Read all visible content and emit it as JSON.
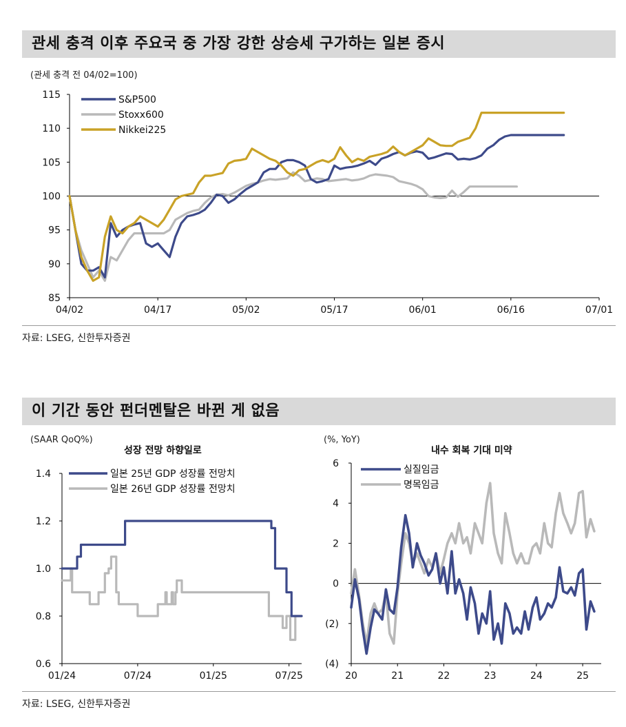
{
  "section1": {
    "title": "관세 충격 이후 주요국 중 가장 강한 상승세 구가하는 일본 증시",
    "source": "자료: LSEG, 신한투자증권"
  },
  "section2": {
    "title": "이 기간 동안 펀더멘탈은 바뀐 게 없음",
    "source": "자료: LSEG, 신한투자증권"
  },
  "colors": {
    "navy": "#3d4a8a",
    "gray": "#b9b9b9",
    "gold": "#c9a227"
  },
  "chart_data": [
    {
      "id": "stocks",
      "type": "line",
      "title": "",
      "ylabel": "(관세 충격 전 04/02=100)",
      "ylim": [
        85,
        115
      ],
      "yticks": [
        "85",
        "90",
        "95",
        "100",
        "105",
        "110",
        "115"
      ],
      "xlim": [
        0,
        90
      ],
      "xticks": [
        {
          "label": "04/02",
          "x": 0
        },
        {
          "label": "04/17",
          "x": 15
        },
        {
          "label": "05/02",
          "x": 30
        },
        {
          "label": "05/17",
          "x": 45
        },
        {
          "label": "06/01",
          "x": 60
        },
        {
          "label": "06/16",
          "x": 75
        },
        {
          "label": "07/01",
          "x": 90
        }
      ],
      "baseline": 100,
      "legend": "top-left",
      "series": [
        {
          "name": "S&P500",
          "color": "#3d4a8a",
          "x": [
            0,
            1,
            2,
            3,
            4,
            5,
            6,
            7,
            8,
            9,
            10,
            11,
            12,
            13,
            14,
            15,
            16,
            17,
            18,
            19,
            20,
            21,
            22,
            23,
            24,
            25,
            26,
            27,
            28,
            29,
            30,
            31,
            32,
            33,
            34,
            35,
            36,
            37,
            38,
            39,
            40,
            41,
            42,
            43,
            44,
            45,
            46,
            47,
            48,
            49,
            50,
            51,
            52,
            53,
            54,
            55,
            56,
            57,
            58,
            59,
            60,
            61,
            62,
            63,
            64,
            65,
            66,
            67,
            68,
            69,
            70,
            71,
            72,
            73,
            74,
            75,
            76,
            77,
            78,
            79,
            80,
            81,
            82,
            83,
            84
          ],
          "y": [
            100,
            95,
            90,
            89,
            89,
            89.5,
            88,
            96,
            94,
            95,
            95.5,
            95.8,
            96,
            93,
            92.5,
            93,
            92,
            91,
            94,
            96,
            97,
            97.2,
            97.5,
            98,
            99,
            100.2,
            100,
            99,
            99.5,
            100.3,
            101,
            101.5,
            102,
            103.5,
            104,
            104,
            105,
            105.3,
            105.3,
            105,
            104.5,
            102.5,
            102,
            102.2,
            102.5,
            104.5,
            104,
            104.2,
            104.3,
            104.5,
            104.8,
            105.2,
            104.6,
            105.5,
            105.8,
            106.2,
            106.5,
            106,
            106.4,
            106.6,
            106.4,
            105.5,
            105.7,
            106,
            106.3,
            106.2,
            105.4,
            105.5,
            105.4,
            105.6,
            106,
            107,
            107.5,
            108.3,
            108.8,
            109,
            109,
            109,
            109,
            109,
            109,
            109,
            109,
            109,
            109
          ]
        },
        {
          "name": "Stoxx600",
          "color": "#b9b9b9",
          "x": [
            0,
            1,
            2,
            3,
            4,
            5,
            6,
            7,
            8,
            9,
            10,
            11,
            12,
            13,
            14,
            15,
            16,
            17,
            18,
            19,
            20,
            21,
            22,
            23,
            24,
            25,
            26,
            27,
            28,
            29,
            30,
            31,
            32,
            33,
            34,
            35,
            36,
            37,
            38,
            39,
            40,
            41,
            42,
            43,
            44,
            45,
            46,
            47,
            48,
            49,
            50,
            51,
            52,
            53,
            54,
            55,
            56,
            57,
            58,
            59,
            60,
            61,
            62,
            63,
            64,
            65,
            66,
            67,
            68,
            69,
            70,
            71,
            72,
            73,
            74,
            75,
            76
          ],
          "y": [
            100,
            95,
            92,
            90,
            88,
            89,
            87.5,
            91,
            90.5,
            92,
            93.5,
            94.5,
            94.5,
            94.5,
            94.5,
            94.5,
            94.5,
            95,
            96.5,
            97,
            97.5,
            97.8,
            98,
            99,
            99.8,
            100.2,
            100.3,
            100.1,
            100.5,
            101,
            101.5,
            101.8,
            102,
            102.3,
            102.5,
            102.4,
            102.5,
            102.6,
            103.5,
            103,
            102.2,
            102.4,
            102.6,
            102.5,
            102.2,
            102.3,
            102.4,
            102.5,
            102.3,
            102.4,
            102.6,
            103,
            103.2,
            103.1,
            103,
            102.8,
            102.2,
            102,
            101.8,
            101.5,
            101,
            100,
            99.8,
            99.7,
            99.8,
            100.8,
            99.9,
            100.6,
            101.4,
            101.4,
            101.4,
            101.4,
            101.4,
            101.4,
            101.4,
            101.4,
            101.4
          ]
        },
        {
          "name": "Nikkei225",
          "color": "#c9a227",
          "x": [
            0,
            1,
            2,
            3,
            4,
            5,
            6,
            7,
            8,
            9,
            10,
            11,
            12,
            13,
            14,
            15,
            16,
            17,
            18,
            19,
            20,
            21,
            22,
            23,
            24,
            25,
            26,
            27,
            28,
            29,
            30,
            31,
            32,
            33,
            34,
            35,
            36,
            37,
            38,
            39,
            40,
            41,
            42,
            43,
            44,
            45,
            46,
            47,
            48,
            49,
            50,
            51,
            52,
            53,
            54,
            55,
            56,
            57,
            58,
            59,
            60,
            61,
            62,
            63,
            64,
            65,
            66,
            67,
            68,
            69,
            70,
            71,
            72,
            73,
            74,
            75,
            76,
            77,
            78,
            79,
            80,
            81,
            82,
            83,
            84
          ],
          "y": [
            100,
            95,
            91,
            89,
            87.5,
            88,
            94,
            97,
            95,
            94.5,
            95.5,
            96,
            97,
            96.5,
            96,
            95.5,
            96.5,
            98,
            99.5,
            100,
            100.2,
            100.4,
            102,
            103,
            103,
            103.2,
            103.4,
            104.8,
            105.2,
            105.3,
            105.5,
            107,
            106.5,
            106,
            105.5,
            105.2,
            104.5,
            103.5,
            103,
            103.8,
            104,
            104.5,
            105,
            105.3,
            105,
            105.5,
            107.2,
            106,
            105,
            105.5,
            105.2,
            105.8,
            106,
            106.2,
            106.5,
            107.3,
            106.5,
            106,
            106.5,
            107,
            107.5,
            108.5,
            108,
            107.5,
            107.4,
            107.4,
            108,
            108.3,
            108.6,
            110,
            112.3,
            112.3,
            112.3,
            112.3,
            112.3,
            112.3,
            112.3,
            112.3,
            112.3,
            112.3,
            112.3,
            112.3,
            112.3,
            112.3,
            112.3
          ]
        }
      ]
    },
    {
      "id": "gdp",
      "type": "line",
      "title": "성장 전망 하향일로",
      "ylabel": "(SAAR QoQ%)",
      "ylim": [
        0.6,
        1.4
      ],
      "yticks": [
        "0.6",
        "0.8",
        "1.0",
        "1.2",
        "1.4"
      ],
      "xlim": [
        0,
        19
      ],
      "xticks": [
        {
          "label": "01/24",
          "x": 0
        },
        {
          "label": "07/24",
          "x": 6
        },
        {
          "label": "01/25",
          "x": 12
        },
        {
          "label": "07/25",
          "x": 18
        }
      ],
      "legend": "top-left",
      "series": [
        {
          "name": "일본 25년 GDP 성장률 전망치",
          "color": "#3d4a8a",
          "x": [
            0,
            1.2,
            1.2,
            1.5,
            1.5,
            5,
            5,
            16.6,
            16.6,
            16.9,
            16.9,
            17.8,
            17.8,
            18.2,
            18.2,
            19
          ],
          "y": [
            1.0,
            1.0,
            1.05,
            1.05,
            1.1,
            1.1,
            1.2,
            1.2,
            1.17,
            1.17,
            1.0,
            1.0,
            0.9,
            0.9,
            0.8,
            0.8
          ]
        },
        {
          "name": "일본 26년 GDP 성장률 전망치",
          "color": "#b9b9b9",
          "x": [
            0,
            0.7,
            0.7,
            0.8,
            0.8,
            2.2,
            2.2,
            2.9,
            2.9,
            3.4,
            3.4,
            3.7,
            3.7,
            3.9,
            3.9,
            4.3,
            4.3,
            4.5,
            4.5,
            6,
            6,
            7.6,
            7.6,
            8.2,
            8.2,
            8.3,
            8.3,
            8.7,
            8.7,
            8.8,
            8.8,
            9.0,
            9.0,
            9.1,
            9.1,
            9.5,
            9.5,
            12,
            12,
            16.4,
            16.4,
            17.5,
            17.5,
            17.8,
            17.8,
            18.1,
            18.1,
            18.5,
            18.5,
            19
          ],
          "y": [
            0.95,
            0.95,
            1.0,
            1.0,
            0.9,
            0.9,
            0.85,
            0.85,
            0.9,
            0.9,
            0.98,
            0.98,
            1.0,
            1.0,
            1.05,
            1.05,
            0.9,
            0.9,
            0.85,
            0.85,
            0.8,
            0.8,
            0.85,
            0.85,
            0.9,
            0.9,
            0.85,
            0.85,
            0.9,
            0.9,
            0.85,
            0.85,
            0.9,
            0.9,
            0.95,
            0.95,
            0.9,
            0.9,
            0.9,
            0.9,
            0.8,
            0.8,
            0.75,
            0.75,
            0.8,
            0.8,
            0.7,
            0.7,
            0.8,
            0.8
          ]
        }
      ]
    },
    {
      "id": "wages",
      "type": "line",
      "title": "내수 회복 기대 미약",
      "ylabel": "(%, YoY)",
      "ylim": [
        -4,
        6
      ],
      "yticks": [
        "(4)",
        "(2)",
        "0",
        "2",
        "4",
        "6"
      ],
      "xlim": [
        2020,
        2025.4
      ],
      "xticks": [
        {
          "label": "20",
          "x": 2020
        },
        {
          "label": "21",
          "x": 2021
        },
        {
          "label": "22",
          "x": 2022
        },
        {
          "label": "23",
          "x": 2023
        },
        {
          "label": "24",
          "x": 2024
        },
        {
          "label": "25",
          "x": 2025
        }
      ],
      "legend": "top-left",
      "series": [
        {
          "name": "실질임금",
          "color": "#3d4a8a",
          "x": [
            2020,
            2020.08,
            2020.17,
            2020.25,
            2020.33,
            2020.42,
            2020.5,
            2020.58,
            2020.67,
            2020.75,
            2020.83,
            2020.92,
            2021,
            2021.08,
            2021.17,
            2021.25,
            2021.33,
            2021.42,
            2021.5,
            2021.58,
            2021.67,
            2021.75,
            2021.83,
            2021.92,
            2022,
            2022.08,
            2022.17,
            2022.25,
            2022.33,
            2022.42,
            2022.5,
            2022.58,
            2022.67,
            2022.75,
            2022.83,
            2022.92,
            2023,
            2023.08,
            2023.17,
            2023.25,
            2023.33,
            2023.42,
            2023.5,
            2023.58,
            2023.67,
            2023.75,
            2023.83,
            2023.92,
            2024,
            2024.08,
            2024.17,
            2024.25,
            2024.33,
            2024.42,
            2024.5,
            2024.58,
            2024.67,
            2024.75,
            2024.83,
            2024.92,
            2025,
            2025.08,
            2025.17,
            2025.25
          ],
          "y": [
            -1.2,
            0.2,
            -0.8,
            -2.3,
            -3.5,
            -2.2,
            -1.3,
            -1.5,
            -1.8,
            -0.3,
            -1.3,
            -1.5,
            -0.2,
            1.8,
            3.4,
            2.5,
            0.8,
            2.0,
            1.4,
            1.0,
            0.4,
            0.7,
            1.5,
            0.0,
            0.8,
            -0.5,
            1.6,
            -0.5,
            0.2,
            -0.5,
            -1.8,
            -0.2,
            -1.0,
            -2.5,
            -1.5,
            -2.0,
            -0.4,
            -2.8,
            -2.0,
            -3.0,
            -1.0,
            -1.5,
            -2.5,
            -2.2,
            -2.5,
            -1.4,
            -2.3,
            -1.2,
            -0.7,
            -1.8,
            -1.5,
            -1.0,
            -1.2,
            -0.7,
            0.8,
            -0.4,
            -0.5,
            -0.2,
            -0.6,
            0.5,
            0.7,
            -2.3,
            -0.9,
            -1.4
          ]
        },
        {
          "name": "명목임금",
          "color": "#b9b9b9",
          "x": [
            2020,
            2020.08,
            2020.17,
            2020.25,
            2020.33,
            2020.42,
            2020.5,
            2020.58,
            2020.67,
            2020.75,
            2020.83,
            2020.92,
            2021,
            2021.08,
            2021.17,
            2021.25,
            2021.33,
            2021.42,
            2021.5,
            2021.58,
            2021.67,
            2021.75,
            2021.83,
            2021.92,
            2022,
            2022.08,
            2022.17,
            2022.25,
            2022.33,
            2022.42,
            2022.5,
            2022.58,
            2022.67,
            2022.75,
            2022.83,
            2022.92,
            2023,
            2023.08,
            2023.17,
            2023.25,
            2023.33,
            2023.42,
            2023.5,
            2023.58,
            2023.67,
            2023.75,
            2023.83,
            2023.92,
            2024,
            2024.08,
            2024.17,
            2024.25,
            2024.33,
            2024.42,
            2024.5,
            2024.58,
            2024.67,
            2024.75,
            2024.83,
            2024.92,
            2025,
            2025.08,
            2025.17,
            2025.25
          ],
          "y": [
            -0.5,
            0.7,
            -0.6,
            -2.0,
            -3.0,
            -1.5,
            -1.0,
            -1.5,
            -1.3,
            -0.5,
            -2.5,
            -3.0,
            -0.5,
            1.0,
            2.5,
            2.0,
            1.0,
            1.5,
            1.0,
            0.5,
            1.2,
            0.8,
            1.5,
            0.5,
            1.2,
            2.0,
            2.5,
            2.0,
            3.0,
            2.0,
            2.3,
            1.5,
            3.0,
            2.5,
            2.0,
            4.0,
            5.0,
            2.5,
            1.5,
            1.0,
            3.5,
            2.5,
            1.5,
            1.0,
            1.5,
            1.0,
            1.0,
            1.8,
            2.0,
            1.5,
            3.0,
            2.0,
            1.8,
            3.5,
            4.5,
            3.5,
            3.0,
            2.5,
            3.0,
            4.5,
            4.6,
            2.3,
            3.2,
            2.6
          ]
        }
      ]
    }
  ]
}
